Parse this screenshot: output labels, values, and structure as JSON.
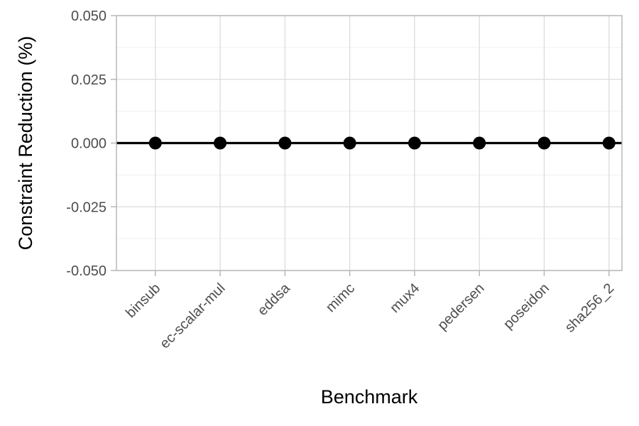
{
  "chart_data": {
    "type": "scatter",
    "title": "",
    "xlabel": "Benchmark",
    "ylabel": "Constraint Reduction (%)",
    "categories": [
      "binsub",
      "ec-scalar-mul",
      "eddsa",
      "mimc",
      "mux4",
      "pedersen",
      "poseidon",
      "sha256_2"
    ],
    "values": [
      0,
      0,
      0,
      0,
      0,
      0,
      0,
      0
    ],
    "ylim": [
      -0.05,
      0.05
    ],
    "yticks": [
      -0.05,
      -0.025,
      0,
      0.025,
      0.05
    ],
    "ytick_labels": [
      "-0.050",
      "-0.025",
      "0.000",
      "0.025",
      "0.050"
    ],
    "reference_line": 0,
    "grid": true,
    "legend": "none",
    "colors": {
      "points": "#000000",
      "reference_line": "#000000",
      "grid_major": "#dcdcdc",
      "grid_minor": "#ececec",
      "panel_border": "#b3b3b3",
      "tick_text": "#4d4d4d"
    }
  }
}
